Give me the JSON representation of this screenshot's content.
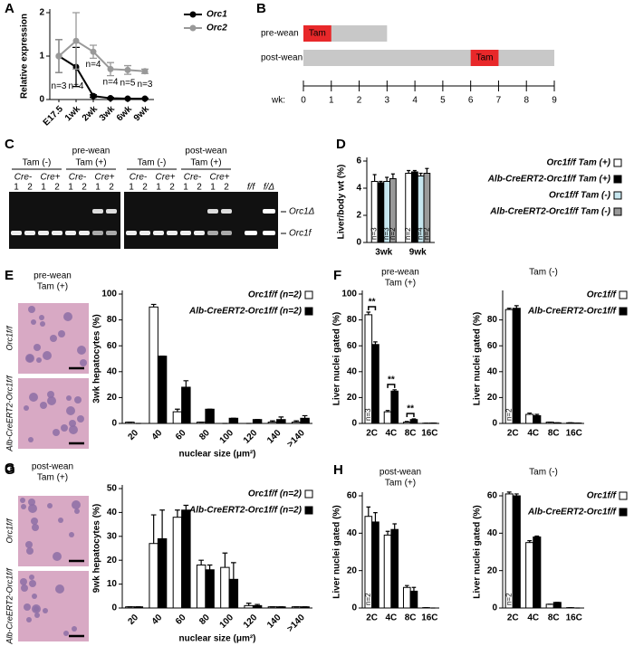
{
  "chart_data": [
    {
      "type": "line",
      "panel": "A",
      "ylabel": "Relative expression",
      "categories": [
        "E17.5",
        "1wk",
        "2wk",
        "3wk",
        "6wk",
        "9wk"
      ],
      "series": [
        {
          "name": "Orc1",
          "color": "#000000",
          "values": [
            1,
            0.75,
            0.08,
            0.03,
            0.02,
            0.02
          ],
          "errors": [
            0.38,
            0.45,
            0.03,
            0.02,
            0.01,
            0.01
          ]
        },
        {
          "name": "Orc2",
          "color": "#999999",
          "values": [
            1,
            1.35,
            1.1,
            0.7,
            0.68,
            0.65
          ],
          "errors": [
            0.38,
            0.65,
            0.15,
            0.15,
            0.1,
            0.05
          ]
        }
      ],
      "n_labels": [
        "n=3",
        "n=4",
        "n=4",
        "n=4",
        "n=5",
        "n=3"
      ],
      "ylim": [
        0,
        2
      ],
      "yticks": [
        0,
        1,
        2
      ]
    },
    {
      "type": "timeline",
      "panel": "B",
      "rows": [
        {
          "label": "pre-wean",
          "end": 3,
          "tam": [
            0,
            1
          ],
          "tam_label": "Tam"
        },
        {
          "label": "post-wean",
          "end": 9,
          "tam": [
            6,
            7
          ],
          "tam_label": "Tam"
        }
      ],
      "xlabel": "wk:",
      "xlim": [
        0,
        9
      ],
      "xticks": [
        0,
        1,
        2,
        3,
        4,
        5,
        6,
        7,
        8,
        9
      ],
      "bar_color": "#c8c8c8",
      "tam_color": "#e8282a"
    },
    {
      "type": "bar",
      "panel": "D",
      "ylabel": "Liver/body wt (%)",
      "categories": [
        "3wk",
        "9wk"
      ],
      "series": [
        {
          "name": "Orc1f/f Tam (+)",
          "color": "#ffffff",
          "values": [
            4.5,
            5.1
          ],
          "errors": [
            0.5,
            0.2
          ],
          "n_labels": [
            "n=3",
            "n=2"
          ]
        },
        {
          "name": "Alb-CreERT2-Orc1f/f Tam (+)",
          "color": "#000000",
          "values": [
            4.4,
            5.2
          ],
          "errors": [
            0.1,
            0.1
          ],
          "n_labels": [
            "n=4",
            "n=3"
          ]
        },
        {
          "name": "Orc1f/f Tam (-)",
          "color": "#c6e6ef",
          "values": [
            4.5,
            4.9
          ],
          "errors": [
            0.3,
            0.2
          ],
          "n_labels": [
            "n=3",
            "n=4"
          ]
        },
        {
          "name": "Alb-CreERT2-Orc1f/f Tam (-)",
          "color": "#999999",
          "values": [
            4.7,
            5.1
          ],
          "errors": [
            0.35,
            0.35
          ],
          "n_labels": [
            "n=2",
            "n=2"
          ]
        }
      ],
      "ylim": [
        0,
        6
      ],
      "yticks": [
        0,
        2,
        4,
        6
      ]
    },
    {
      "type": "bar",
      "panel": "E",
      "ylabel": "3wk hepatocytes (%)",
      "xlabel": "nuclear size (μm²)",
      "categories": [
        "20",
        "40",
        "60",
        "80",
        "100",
        "120",
        "140",
        ">140"
      ],
      "series": [
        {
          "name": "Orc1f/f (n=2)",
          "color": "#ffffff",
          "values": [
            1,
            90,
            9,
            1,
            0,
            0,
            1,
            1
          ],
          "errors": [
            0,
            2,
            2,
            0,
            0,
            0,
            1,
            1
          ]
        },
        {
          "name": "Alb-CreERT2-Orc1f/f (n=2)",
          "color": "#000000",
          "values": [
            0,
            52,
            28,
            11,
            4,
            3,
            3,
            4
          ],
          "errors": [
            0,
            0,
            5,
            0,
            0,
            0,
            2,
            2
          ]
        }
      ],
      "ylim": [
        0,
        100
      ],
      "yticks": [
        0,
        20,
        40,
        60,
        80,
        100
      ]
    },
    {
      "type": "bar",
      "panel": "F",
      "title": [
        "pre-wean",
        "Tam (+)"
      ],
      "ylabel": "Liver nuclei gated (%)",
      "categories": [
        "2C",
        "4C",
        "8C",
        "16C"
      ],
      "series": [
        {
          "color": "#ffffff",
          "values": [
            84,
            9,
            1,
            0.2
          ],
          "errors": [
            2,
            1,
            0.5,
            0
          ],
          "n_labels": [
            "n=3",
            null,
            null,
            null
          ]
        },
        {
          "color": "#000000",
          "values": [
            61,
            25,
            3,
            0.3
          ],
          "errors": [
            2,
            1,
            0.5,
            0
          ],
          "n_labels": [
            "n=4",
            null,
            null,
            null
          ]
        }
      ],
      "significance": [
        "**",
        "**",
        "**",
        null
      ],
      "ylim": [
        0,
        100
      ],
      "yticks": [
        0,
        20,
        40,
        60,
        80,
        100
      ]
    },
    {
      "type": "bar",
      "title": [
        "Tam (-)"
      ],
      "ylabel": "Liver nuclei gated (%)",
      "categories": [
        "2C",
        "4C",
        "8C",
        "16C"
      ],
      "series": [
        {
          "name": "Orc1f/f",
          "color": "#ffffff",
          "values": [
            88,
            7,
            1,
            0.5
          ],
          "errors": [
            1,
            1,
            0,
            0
          ],
          "n_labels": [
            "n=2",
            null,
            null,
            null
          ]
        },
        {
          "name": "Alb-CreERT2-Orc1f/f",
          "color": "#000000",
          "values": [
            89,
            6,
            0.5,
            0.3
          ],
          "errors": [
            2,
            1,
            0,
            0
          ],
          "n_labels": [
            "n=2",
            null,
            null,
            null
          ]
        }
      ],
      "ylim": [
        0,
        100
      ],
      "yticks": [
        0,
        20,
        40,
        60,
        80
      ]
    },
    {
      "type": "bar",
      "panel": "G",
      "ylabel": "9wk hepatocytes (%)",
      "xlabel": "nuclear size (μm²)",
      "categories": [
        "20",
        "40",
        "60",
        "80",
        "100",
        "120",
        "140",
        ">140"
      ],
      "series": [
        {
          "name": "Orc1f/f (n=2)",
          "color": "#ffffff",
          "values": [
            0.5,
            27,
            38,
            18,
            17,
            1,
            0.5,
            0.5
          ],
          "errors": [
            0,
            12,
            3,
            2,
            6,
            1,
            0,
            0
          ]
        },
        {
          "name": "Alb-CreERT2-Orc1f/f (n=2)",
          "color": "#000000",
          "values": [
            0.5,
            29,
            41,
            16,
            12,
            1,
            0.5,
            0.5
          ],
          "errors": [
            0,
            12,
            2,
            2,
            7,
            0.5,
            0,
            0
          ]
        }
      ],
      "ylim": [
        0,
        50
      ],
      "yticks": [
        0,
        10,
        20,
        30,
        40,
        50
      ]
    },
    {
      "type": "bar",
      "panel": "H",
      "title": [
        "post-wean",
        "Tam (+)"
      ],
      "ylabel": "Liver nuclei gated (%)",
      "categories": [
        "2C",
        "4C",
        "8C",
        "16C"
      ],
      "series": [
        {
          "color": "#ffffff",
          "values": [
            49,
            39,
            11,
            0.2
          ],
          "errors": [
            5,
            2,
            1,
            0
          ],
          "n_labels": [
            "n=2",
            null,
            null,
            null
          ]
        },
        {
          "color": "#000000",
          "values": [
            46,
            42,
            9,
            0
          ],
          "errors": [
            5,
            3,
            2,
            0
          ],
          "n_labels": [
            "n=3",
            null,
            null,
            null
          ]
        }
      ],
      "ylim": [
        0,
        60
      ],
      "yticks": [
        0,
        20,
        40,
        60
      ]
    },
    {
      "type": "bar",
      "title": [
        "Tam (-)"
      ],
      "ylabel": "Liver nuclei gated (%)",
      "categories": [
        "2C",
        "4C",
        "8C",
        "16C"
      ],
      "series": [
        {
          "name": "Orc1f/f",
          "color": "#ffffff",
          "values": [
            61,
            35,
            2,
            0.2
          ],
          "errors": [
            1,
            1,
            0,
            0
          ],
          "n_labels": [
            "n=2",
            null,
            null,
            null
          ]
        },
        {
          "name": "Alb-CreERT2-Orc1f/f",
          "color": "#000000",
          "values": [
            60,
            38,
            3,
            0
          ],
          "errors": [
            1,
            0.5,
            0,
            0
          ],
          "n_labels": [
            "n=2",
            null,
            null,
            null
          ]
        }
      ],
      "ylim": [
        0,
        60
      ],
      "yticks": [
        0,
        20,
        40,
        60
      ]
    }
  ],
  "gel_panel": "C",
  "gels": [
    {
      "headers": [
        [
          "Tam (-)"
        ],
        [
          "pre-wean",
          "Tam (+)"
        ]
      ],
      "genotypes": [
        "Cre-",
        "Cre+",
        "Cre-",
        "Cre+"
      ],
      "lanes": [
        1,
        2,
        1,
        2,
        1,
        2,
        1,
        2
      ]
    },
    {
      "headers": [
        [
          "Tam (-)"
        ],
        [
          "post-wean",
          "Tam (+)"
        ]
      ],
      "genotypes": [
        "Cre-",
        "Cre+",
        "Cre-",
        "Cre+"
      ],
      "lanes": [
        1,
        2,
        1,
        2,
        1,
        2,
        1,
        2
      ],
      "controls": [
        "f/f",
        "f/Δ"
      ]
    }
  ],
  "band_labels": [
    "Orc1Δ",
    "Orc1f"
  ],
  "histology": [
    {
      "panel": "E",
      "title": [
        "pre-wean",
        "Tam (+)"
      ],
      "labels": [
        "Orc1f/f",
        "Alb-CreERT2-Orc1f/f"
      ]
    },
    {
      "panel": "G",
      "title": [
        "post-wean",
        "Tam (+)"
      ],
      "labels": [
        "Orc1f/f",
        "Alb-CreERT2-Orc1f/f"
      ]
    }
  ]
}
